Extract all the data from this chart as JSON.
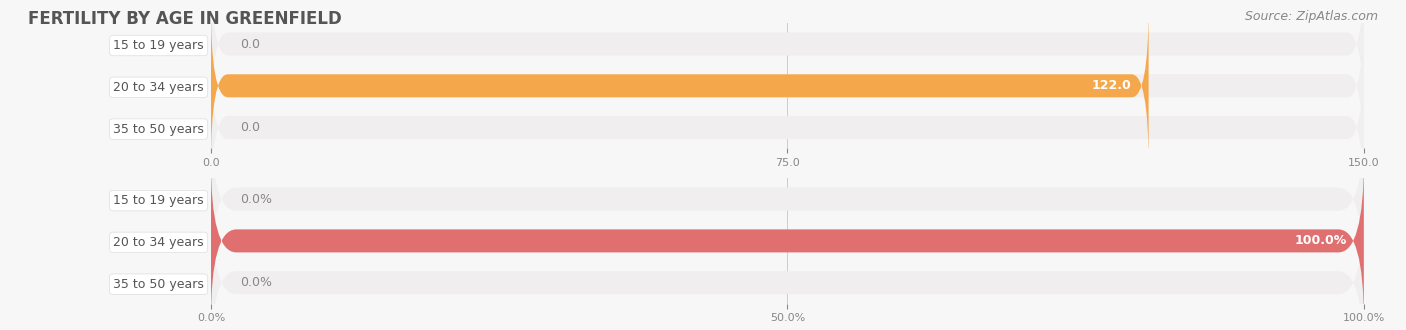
{
  "title": "FERTILITY BY AGE IN GREENFIELD",
  "source": "Source: ZipAtlas.com",
  "top_chart": {
    "categories": [
      "15 to 19 years",
      "20 to 34 years",
      "35 to 50 years"
    ],
    "values": [
      0.0,
      122.0,
      0.0
    ],
    "xlim": [
      0,
      150.0
    ],
    "xticks": [
      0.0,
      75.0,
      150.0
    ],
    "bar_color": "#F5A84B",
    "bar_bg_color": "#F0EEEE",
    "label_color_inside": "#FFFFFF",
    "label_color_outside": "#888888",
    "value_labels": [
      "0.0",
      "122.0",
      "0.0"
    ]
  },
  "bottom_chart": {
    "categories": [
      "15 to 19 years",
      "20 to 34 years",
      "35 to 50 years"
    ],
    "values": [
      0.0,
      100.0,
      0.0
    ],
    "xlim": [
      0,
      100.0
    ],
    "xticks": [
      0.0,
      50.0,
      100.0
    ],
    "xtick_labels": [
      "0.0%",
      "50.0%",
      "100.0%"
    ],
    "bar_color": "#E07070",
    "bar_bg_color": "#F0EEEE",
    "label_color_inside": "#FFFFFF",
    "label_color_outside": "#888888",
    "value_labels": [
      "0.0%",
      "100.0%",
      "0.0%"
    ]
  },
  "bg_color": "#F7F7F7",
  "title_color": "#555555",
  "tick_color": "#888888",
  "label_fontsize": 9,
  "title_fontsize": 12,
  "source_fontsize": 9,
  "category_fontsize": 9
}
